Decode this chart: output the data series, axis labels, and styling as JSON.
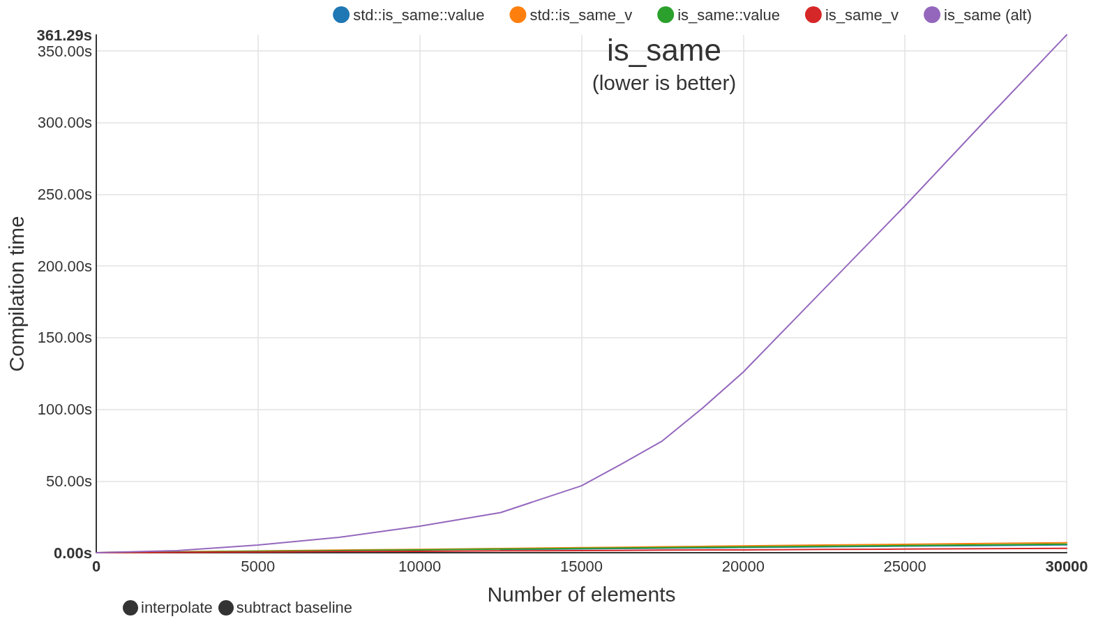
{
  "chart_data": {
    "type": "line",
    "title": "is_same",
    "subtitle": "(lower is better)",
    "xlabel": "Number of elements",
    "ylabel": "Compilation time",
    "annotations": [
      "interpolate",
      "subtract baseline"
    ],
    "x": [
      0,
      2500,
      5000,
      7500,
      10000,
      12500,
      15000,
      16250,
      17500,
      18750,
      20000,
      22500,
      25000,
      27500,
      30000
    ],
    "series": [
      {
        "name": "std::is_same::value",
        "color": "#1f77b4",
        "values": [
          null,
          null,
          null,
          null,
          null,
          2.2,
          2.7,
          2.9,
          3.2,
          3.4,
          3.6,
          4.1,
          4.6,
          5.0,
          5.5
        ]
      },
      {
        "name": "std::is_same_v",
        "color": "#ff7f0e",
        "values": [
          0,
          0.6,
          1.2,
          1.8,
          2.3,
          2.9,
          3.5,
          3.8,
          4.1,
          4.4,
          4.7,
          5.3,
          5.9,
          6.5,
          7.0
        ]
      },
      {
        "name": "is_same::value",
        "color": "#2ca02c",
        "values": [
          0,
          0.5,
          1.0,
          1.5,
          2.0,
          2.5,
          3.0,
          3.3,
          3.5,
          3.8,
          4.0,
          4.5,
          5.0,
          5.5,
          6.0
        ]
      },
      {
        "name": "is_same_v",
        "color": "#d62728",
        "values": [
          0,
          0.3,
          0.5,
          0.8,
          1.0,
          1.3,
          1.5,
          1.6,
          1.8,
          1.9,
          2.0,
          2.3,
          2.5,
          2.8,
          3.0
        ]
      },
      {
        "name": "is_same (alt)",
        "color": "#9467bd",
        "values": [
          0,
          1.5,
          5.4,
          10.7,
          18.5,
          28,
          46.7,
          62,
          78,
          101,
          126,
          184,
          242,
          302,
          361.29
        ]
      }
    ],
    "xlim": [
      0,
      30000
    ],
    "xticks": [
      0,
      5000,
      10000,
      15000,
      20000,
      25000,
      30000
    ],
    "ylim": [
      0,
      361.29
    ],
    "yticks": [
      {
        "value": 0,
        "label": "0.00s"
      },
      {
        "value": 50,
        "label": "50.00s"
      },
      {
        "value": 100,
        "label": "100.00s"
      },
      {
        "value": 150,
        "label": "150.00s"
      },
      {
        "value": 200,
        "label": "200.00s"
      },
      {
        "value": 250,
        "label": "250.00s"
      },
      {
        "value": 300,
        "label": "300.00s"
      },
      {
        "value": 350,
        "label": "350.00s"
      },
      {
        "value": 361.29,
        "label": "361.29s"
      }
    ],
    "grid": true,
    "legend": "top",
    "marker": "none",
    "line_style": "solid"
  }
}
